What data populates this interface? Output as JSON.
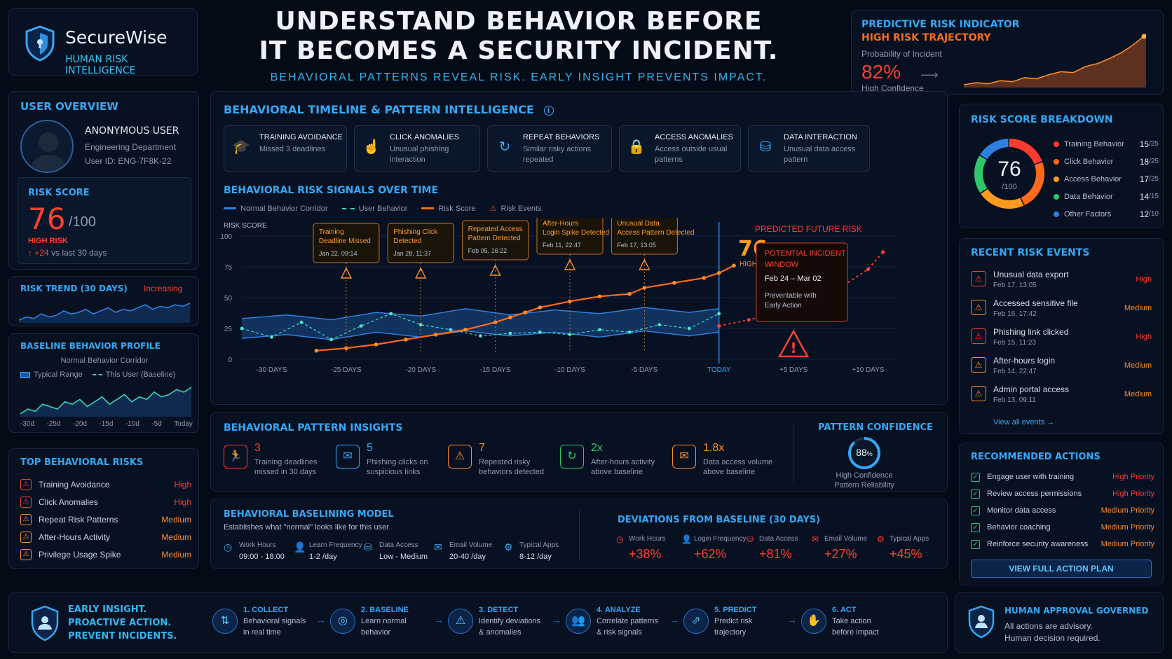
{
  "brand": {
    "name": "SecureWise",
    "tagline": "HUMAN RISK INTELLIGENCE"
  },
  "headline": {
    "line1": "UNDERSTAND BEHAVIOR BEFORE",
    "line2": "IT BECOMES A SECURITY INCIDENT.",
    "subtitle": "BEHAVIORAL PATTERNS REVEAL RISK. EARLY INSIGHT PREVENTS IMPACT."
  },
  "predictive": {
    "title": "PREDICTIVE RISK INDICATOR",
    "subtitle": "HIGH RISK TRAJECTORY",
    "prob_label": "Probability of Incident",
    "value": "82%",
    "confidence": "High Confidence",
    "spark": [
      12,
      14,
      13,
      16,
      15,
      19,
      18,
      22,
      25,
      24,
      30,
      33,
      38,
      44,
      52,
      62
    ]
  },
  "user": {
    "title": "USER OVERVIEW",
    "name": "ANONYMOUS USER",
    "dept": "Engineering Department",
    "id": "User ID: ENG-7F8K-22"
  },
  "risk_score": {
    "title": "RISK SCORE",
    "value": "76",
    "max": "/100",
    "level": "HIGH RISK",
    "delta": "+24",
    "delta_suffix": "vs last 30 days"
  },
  "risk_trend": {
    "title": "RISK TREND (30 DAYS)",
    "status": "Increasing",
    "values": [
      8,
      10,
      9,
      12,
      10,
      11,
      14,
      12,
      13,
      15,
      12,
      14,
      16,
      13,
      15,
      14,
      16,
      18,
      15,
      17,
      16,
      18,
      17,
      19
    ]
  },
  "baseline_profile": {
    "title": "BASELINE BEHAVIOR PROFILE",
    "subtitle": "Normal Behavior Corridor",
    "legend_typical": "Typical Range",
    "legend_user": "This User (Baseline)",
    "ticks": [
      "-30d",
      "-25d",
      "-20d",
      "-15d",
      "-10d",
      "-5d",
      "Today"
    ],
    "values": [
      10,
      12,
      11,
      14,
      13,
      12,
      15,
      14,
      16,
      13,
      15,
      17,
      14,
      16,
      18,
      15,
      17,
      16,
      19,
      17,
      18,
      20,
      19,
      21
    ]
  },
  "top_risks": {
    "title": "TOP BEHAVIORAL RISKS",
    "items": [
      {
        "label": "Training Avoidance",
        "level": "High",
        "color": "#ff3b2e"
      },
      {
        "label": "Click Anomalies",
        "level": "High",
        "color": "#ff3b2e"
      },
      {
        "label": "Repeat Risk Patterns",
        "level": "Medium",
        "color": "#ff8c2a"
      },
      {
        "label": "After-Hours Activity",
        "level": "Medium",
        "color": "#ff8c2a"
      },
      {
        "label": "Privilege Usage Spike",
        "level": "Medium",
        "color": "#ff8c2a"
      }
    ]
  },
  "timeline": {
    "title": "BEHAVIORAL TIMELINE & PATTERN INTELLIGENCE",
    "cards": [
      {
        "title": "TRAINING AVOIDANCE",
        "desc": "Missed 3 deadlines",
        "icon": "graduation-cap-icon"
      },
      {
        "title": "CLICK ANOMALIES",
        "desc": "Unusual phishing interaction",
        "icon": "pointer-click-icon"
      },
      {
        "title": "REPEAT BEHAVIORS",
        "desc": "Similar risky actions repeated",
        "icon": "repeat-icon"
      },
      {
        "title": "ACCESS ANOMALIES",
        "desc": "Access outside usual patterns",
        "icon": "lock-icon"
      },
      {
        "title": "DATA INTERACTION",
        "desc": "Unusual data access pattern",
        "icon": "database-icon"
      }
    ]
  },
  "chart_data": {
    "type": "line",
    "title": "BEHAVIORAL RISK SIGNALS OVER TIME",
    "ylabel": "RISK SCORE",
    "ylim": [
      0,
      100
    ],
    "yticks": [
      0,
      25,
      50,
      75,
      100
    ],
    "xlim": [
      -32,
      12
    ],
    "xticks": [
      {
        "x": -30,
        "label": "-30 DAYS"
      },
      {
        "x": -25,
        "label": "-25 DAYS"
      },
      {
        "x": -20,
        "label": "-20 DAYS"
      },
      {
        "x": -15,
        "label": "-15 DAYS"
      },
      {
        "x": -10,
        "label": "-10 DAYS"
      },
      {
        "x": -5,
        "label": "-5 DAYS"
      },
      {
        "x": 0,
        "label": "TODAY"
      },
      {
        "x": 5,
        "label": "+5 DAYS"
      },
      {
        "x": 10,
        "label": "+10 DAYS"
      }
    ],
    "legend": {
      "corridor": "Normal Behavior Corridor",
      "user": "User Behavior",
      "risk": "Risk Score",
      "events": "Risk Events"
    },
    "corridor_upper": [
      [
        -32,
        33
      ],
      [
        -29,
        36
      ],
      [
        -26,
        32
      ],
      [
        -23,
        38
      ],
      [
        -20,
        35
      ],
      [
        -17,
        41
      ],
      [
        -14,
        36
      ],
      [
        -11,
        40
      ],
      [
        -8,
        37
      ],
      [
        -5,
        42
      ],
      [
        -2,
        38
      ],
      [
        0,
        41
      ]
    ],
    "corridor_lower": [
      [
        -32,
        17
      ],
      [
        -29,
        20
      ],
      [
        -26,
        16
      ],
      [
        -23,
        22
      ],
      [
        -20,
        18
      ],
      [
        -17,
        23
      ],
      [
        -14,
        19
      ],
      [
        -11,
        22
      ],
      [
        -8,
        18
      ],
      [
        -5,
        23
      ],
      [
        -2,
        19
      ],
      [
        0,
        22
      ]
    ],
    "user_behavior": [
      [
        -32,
        25
      ],
      [
        -30,
        18
      ],
      [
        -28,
        30
      ],
      [
        -26,
        16
      ],
      [
        -24,
        27
      ],
      [
        -22,
        37
      ],
      [
        -20,
        28
      ],
      [
        -18,
        24
      ],
      [
        -16,
        19
      ],
      [
        -14,
        21
      ],
      [
        -12,
        22
      ],
      [
        -10,
        20
      ],
      [
        -8,
        24
      ],
      [
        -6,
        22
      ],
      [
        -4,
        28
      ],
      [
        -2,
        25
      ],
      [
        0,
        37
      ]
    ],
    "risk_score": [
      [
        -27,
        7
      ],
      [
        -25,
        9
      ],
      [
        -23,
        12
      ],
      [
        -21,
        16
      ],
      [
        -19,
        20
      ],
      [
        -17,
        24
      ],
      [
        -15,
        30
      ],
      [
        -14,
        34
      ],
      [
        -13,
        38
      ],
      [
        -12,
        42
      ],
      [
        -10,
        47
      ],
      [
        -8,
        51
      ],
      [
        -6,
        53
      ],
      [
        -5,
        58
      ],
      [
        -3,
        62
      ],
      [
        -1,
        66
      ],
      [
        0,
        70
      ],
      [
        1,
        76
      ]
    ],
    "predicted": [
      [
        0,
        27
      ],
      [
        2,
        32
      ],
      [
        4,
        38
      ],
      [
        6,
        45
      ],
      [
        8,
        57
      ],
      [
        10,
        73
      ],
      [
        11,
        87
      ]
    ],
    "events": [
      {
        "x": -25,
        "title": "Training Deadline Missed",
        "date": "Jan 22, 09:14"
      },
      {
        "x": -20,
        "title": "Phishing Click Detected",
        "date": "Jan 28, 11:37"
      },
      {
        "x": -15,
        "title": "Repeated Access Pattern Detected",
        "date": "Feb 05, 16:22"
      },
      {
        "x": -10,
        "title": "After-Hours Login Spike Detected",
        "date": "Feb 11, 22:47"
      },
      {
        "x": -5,
        "title": "Unusual Data Access Pattern Detected",
        "date": "Feb 17, 13:05"
      }
    ],
    "current": {
      "value": "76",
      "label": "HIGH RISK"
    },
    "future": {
      "label": "PREDICTED FUTURE RISK",
      "window_title": "POTENTIAL INCIDENT WINDOW",
      "window_dates": "Feb 24 – Mar 02",
      "window_note": "Preventable with Early Action"
    }
  },
  "insights": {
    "title": "BEHAVIORAL PATTERN INSIGHTS",
    "items": [
      {
        "value": "3",
        "label": "Training deadlines missed in 30 days",
        "color": "#ff3b2e"
      },
      {
        "value": "5",
        "label": "Phishing clicks on suspicious links",
        "color": "#35a8f5"
      },
      {
        "value": "7",
        "label": "Repeated risky behaviors detected",
        "color": "#ff8c2a"
      },
      {
        "value": "2x",
        "label": "After-hours activity above baseline",
        "color": "#2ec86a"
      },
      {
        "value": "1.8x",
        "label": "Data access volume above baseline",
        "color": "#ff8c2a"
      }
    ],
    "confidence_title": "PATTERN CONFIDENCE",
    "confidence_value": "88",
    "confidence_unit": "%",
    "confidence_pct": 0.88,
    "confidence_label1": "High Confidence",
    "confidence_label2": "Pattern Reliability"
  },
  "baselining": {
    "title": "BEHAVIORAL BASELINING MODEL",
    "subtitle": "Establishes what \"normal\" looks like for this user",
    "items": [
      {
        "label": "Work Hours",
        "value": "09:00 - 18:00"
      },
      {
        "label": "Learn Frequency",
        "value": "1-2 /day"
      },
      {
        "label": "Data Access",
        "value": "Low - Medium"
      },
      {
        "label": "Email Volume",
        "value": "20-40 /day"
      },
      {
        "label": "Typical Apps",
        "value": "8-12 /day"
      }
    ],
    "dev_title": "DEVIATIONS FROM BASELINE (30 DAYS)",
    "deviations": [
      {
        "label": "Work Hours",
        "value": "+38%"
      },
      {
        "label": "Login Frequency",
        "value": "+62%"
      },
      {
        "label": "Data Access",
        "value": "+81%"
      },
      {
        "label": "Email Volume",
        "value": "+27%"
      },
      {
        "label": "Typical Apps",
        "value": "+45%"
      }
    ]
  },
  "breakdown": {
    "title": "RISK SCORE BREAKDOWN",
    "total": "76",
    "max": "/100",
    "items": [
      {
        "label": "Training Behavior",
        "score": "15",
        "max": "/25",
        "value": 15,
        "color": "#ff3b2e"
      },
      {
        "label": "Click Behavior",
        "score": "18",
        "max": "/25",
        "value": 18,
        "color": "#ff6a1a"
      },
      {
        "label": "Access Behavior",
        "score": "17",
        "max": "/25",
        "value": 17,
        "color": "#ff9a1f"
      },
      {
        "label": "Data Behavior",
        "score": "14",
        "max": "/15",
        "value": 14,
        "color": "#2ec86a"
      },
      {
        "label": "Other Factors",
        "score": "12",
        "max": "/10",
        "value": 12,
        "color": "#2f7fe0"
      }
    ]
  },
  "recent_events": {
    "title": "RECENT RISK EVENTS",
    "items": [
      {
        "label": "Unusual data export",
        "date": "Feb 17, 13:05",
        "level": "High",
        "color": "#ff3b2e"
      },
      {
        "label": "Accessed sensitive file",
        "date": "Feb 16, 17:42",
        "level": "Medium",
        "color": "#ff8c2a"
      },
      {
        "label": "Phishing link clicked",
        "date": "Feb 15, 11:23",
        "level": "High",
        "color": "#ff3b2e"
      },
      {
        "label": "After-hours login",
        "date": "Feb 14, 22:47",
        "level": "Medium",
        "color": "#ff8c2a"
      },
      {
        "label": "Admin portal access",
        "date": "Feb 13, 09:11",
        "level": "Medium",
        "color": "#ff8c2a"
      }
    ],
    "view_all": "View all events"
  },
  "actions": {
    "title": "RECOMMENDED ACTIONS",
    "items": [
      {
        "label": "Engage user with training",
        "priority": "High Priority",
        "color": "#ff3b2e"
      },
      {
        "label": "Review access permissions",
        "priority": "High Priority",
        "color": "#ff3b2e"
      },
      {
        "label": "Monitor data access",
        "priority": "Medium Priority",
        "color": "#ff8c2a"
      },
      {
        "label": "Behavior coaching",
        "priority": "Medium Priority",
        "color": "#ff8c2a"
      },
      {
        "label": "Reinforce security awareness",
        "priority": "Medium Priority",
        "color": "#ff8c2a"
      }
    ],
    "button": "VIEW FULL ACTION PLAN"
  },
  "footer": {
    "line1": "EARLY INSIGHT.",
    "line2": "PROACTIVE ACTION.",
    "line3": "PREVENT INCIDENTS.",
    "steps": [
      {
        "title": "1. COLLECT",
        "desc1": "Behavioral signals",
        "desc2": "in real time"
      },
      {
        "title": "2. BASELINE",
        "desc1": "Learn normal",
        "desc2": "behavior"
      },
      {
        "title": "3. DETECT",
        "desc1": "Identify deviations",
        "desc2": "& anomalies"
      },
      {
        "title": "4. ANALYZE",
        "desc1": "Correlate patterns",
        "desc2": "& risk signals"
      },
      {
        "title": "5. PREDICT",
        "desc1": "Predict risk",
        "desc2": "trajectory"
      },
      {
        "title": "6. ACT",
        "desc1": "Take action",
        "desc2": "before impact"
      }
    ],
    "gov_title": "HUMAN APPROVAL GOVERNED",
    "gov_line1": "All actions are advisory.",
    "gov_line2": "Human decision required."
  }
}
